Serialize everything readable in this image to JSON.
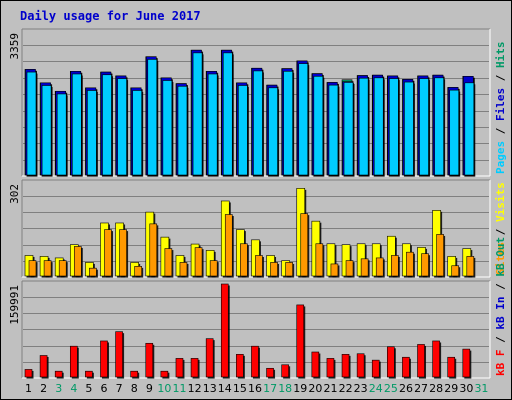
{
  "title": "Daily usage for June 2017",
  "colors": {
    "background": "#c0c0c0",
    "title": "#0000cc",
    "hits": "#009966",
    "files": "#0000cc",
    "pages": "#00ccff",
    "visits": "#ffff00",
    "sites": "#ff9900",
    "kb_in": "#0000cc",
    "kb_out": "#009966",
    "kb_f": "#ff0000",
    "weekday_label": "#000000",
    "weekend_label": "#009966"
  },
  "chart_data": [
    {
      "type": "bar",
      "name": "hits-files-pages",
      "ymax_label": "3359",
      "ylim": [
        0,
        3359
      ],
      "legend": [
        {
          "text": "Pages",
          "color": "#00ccff"
        },
        {
          "text": "Files",
          "color": "#0000cc"
        },
        {
          "text": "Hits",
          "color": "#009966"
        }
      ],
      "categories": [
        "1",
        "2",
        "3",
        "4",
        "5",
        "6",
        "7",
        "8",
        "9",
        "10",
        "11",
        "12",
        "13",
        "14",
        "15",
        "16",
        "17",
        "18",
        "19",
        "20",
        "21",
        "22",
        "23",
        "24",
        "25",
        "26",
        "27",
        "28",
        "29",
        "30",
        "31"
      ],
      "series": [
        {
          "name": "Hits",
          "color": "#009966",
          "values": [
            2750,
            2400,
            2180,
            2700,
            2270,
            2680,
            2580,
            2270,
            3080,
            2530,
            2380,
            3250,
            2700,
            3250,
            2400,
            2780,
            2340,
            2770,
            2970,
            2640,
            2410,
            2480,
            2590,
            2600,
            2580,
            2490,
            2580,
            2600,
            2280,
            2570,
            0
          ]
        },
        {
          "name": "Files",
          "color": "#0000cc",
          "values": [
            2750,
            2400,
            2180,
            2700,
            2270,
            2680,
            2580,
            2270,
            3080,
            2530,
            2380,
            3250,
            2700,
            3250,
            2400,
            2780,
            2340,
            2770,
            2970,
            2640,
            2410,
            2430,
            2590,
            2600,
            2580,
            2490,
            2580,
            2600,
            2280,
            2570,
            0
          ]
        },
        {
          "name": "Pages",
          "color": "#00ccff",
          "values": [
            2680,
            2330,
            2110,
            2630,
            2200,
            2610,
            2510,
            2200,
            3010,
            2460,
            2310,
            3180,
            2630,
            3180,
            2330,
            2710,
            2270,
            2700,
            2900,
            2570,
            2340,
            2410,
            2520,
            2530,
            2510,
            2420,
            2510,
            2530,
            2210,
            2400,
            0
          ]
        }
      ]
    },
    {
      "type": "bar",
      "name": "visits-sites",
      "ymax_label": "302",
      "ylim": [
        0,
        302
      ],
      "legend": [
        {
          "text": "Sites",
          "color": "#ff9900"
        },
        {
          "text": "Visits",
          "color": "#ffff00"
        }
      ],
      "categories": [
        "1",
        "2",
        "3",
        "4",
        "5",
        "6",
        "7",
        "8",
        "9",
        "10",
        "11",
        "12",
        "13",
        "14",
        "15",
        "16",
        "17",
        "18",
        "19",
        "20",
        "21",
        "22",
        "23",
        "24",
        "25",
        "26",
        "27",
        "28",
        "29",
        "30",
        "31"
      ],
      "series": [
        {
          "name": "Visits",
          "color": "#ffff00",
          "values": [
            68,
            65,
            60,
            104,
            45,
            176,
            176,
            45,
            212,
            129,
            68,
            106,
            85,
            249,
            154,
            120,
            68,
            51,
            291,
            182,
            107,
            104,
            107,
            107,
            132,
            107,
            95,
            218,
            65,
            91,
            0
          ]
        },
        {
          "name": "Sites",
          "color": "#ff9900",
          "values": [
            51,
            51,
            51,
            98,
            26,
            154,
            154,
            32,
            173,
            91,
            45,
            94,
            51,
            204,
            107,
            68,
            45,
            45,
            207,
            107,
            40,
            51,
            57,
            60,
            68,
            79,
            74,
            138,
            34,
            65,
            0
          ]
        }
      ]
    },
    {
      "type": "bar",
      "name": "kbytes",
      "ymax_label": "159991",
      "ylim": [
        0,
        159991
      ],
      "legend": [
        {
          "text": "kB F",
          "color": "#ff0000"
        },
        {
          "text": "kB In",
          "color": "#0000cc"
        },
        {
          "text": "kB Out",
          "color": "#009966"
        }
      ],
      "categories": [
        "1",
        "2",
        "3",
        "4",
        "5",
        "6",
        "7",
        "8",
        "9",
        "10",
        "11",
        "12",
        "13",
        "14",
        "15",
        "16",
        "17",
        "18",
        "19",
        "20",
        "21",
        "22",
        "23",
        "24",
        "25",
        "26",
        "27",
        "28",
        "29",
        "30",
        "31"
      ],
      "series": [
        {
          "name": "kB F",
          "color": "#ff0000",
          "values": [
            13000,
            37000,
            10000,
            53000,
            10000,
            62000,
            78000,
            10000,
            58000,
            10000,
            32000,
            32000,
            66000,
            159991,
            39000,
            53000,
            15000,
            21000,
            124000,
            43000,
            32000,
            39000,
            40000,
            29000,
            52000,
            34000,
            56000,
            62000,
            34000,
            48000,
            0
          ]
        }
      ]
    }
  ],
  "x_axis": {
    "days": [
      {
        "label": "1",
        "weekend": false
      },
      {
        "label": "2",
        "weekend": false
      },
      {
        "label": "3",
        "weekend": true
      },
      {
        "label": "4",
        "weekend": true
      },
      {
        "label": "5",
        "weekend": false
      },
      {
        "label": "6",
        "weekend": false
      },
      {
        "label": "7",
        "weekend": false
      },
      {
        "label": "8",
        "weekend": false
      },
      {
        "label": "9",
        "weekend": false
      },
      {
        "label": "10",
        "weekend": true
      },
      {
        "label": "11",
        "weekend": true
      },
      {
        "label": "12",
        "weekend": false
      },
      {
        "label": "13",
        "weekend": false
      },
      {
        "label": "14",
        "weekend": false
      },
      {
        "label": "15",
        "weekend": false
      },
      {
        "label": "16",
        "weekend": false
      },
      {
        "label": "17",
        "weekend": true
      },
      {
        "label": "18",
        "weekend": true
      },
      {
        "label": "19",
        "weekend": false
      },
      {
        "label": "20",
        "weekend": false
      },
      {
        "label": "21",
        "weekend": false
      },
      {
        "label": "22",
        "weekend": false
      },
      {
        "label": "23",
        "weekend": false
      },
      {
        "label": "24",
        "weekend": true
      },
      {
        "label": "25",
        "weekend": true
      },
      {
        "label": "26",
        "weekend": false
      },
      {
        "label": "27",
        "weekend": false
      },
      {
        "label": "28",
        "weekend": false
      },
      {
        "label": "29",
        "weekend": false
      },
      {
        "label": "30",
        "weekend": false
      },
      {
        "label": "31",
        "weekend": true
      }
    ]
  }
}
